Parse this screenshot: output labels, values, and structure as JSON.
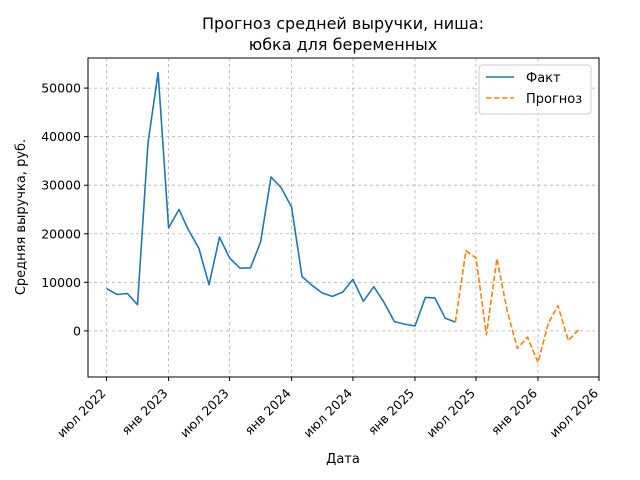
{
  "chart_data": {
    "type": "line",
    "title_line1": "Прогноз средней выручки, ниша:",
    "title_line2": "юбка для беременных",
    "xlabel": "Дата",
    "ylabel": "Средняя выручка, руб.",
    "grid": true,
    "legend_position": "top-right",
    "x_ticks": [
      {
        "label": "июл 2022",
        "date": "2022-07-01"
      },
      {
        "label": "янв 2023",
        "date": "2023-01-01"
      },
      {
        "label": "июл 2023",
        "date": "2023-07-01"
      },
      {
        "label": "янв 2024",
        "date": "2024-01-01"
      },
      {
        "label": "июл 2024",
        "date": "2024-07-01"
      },
      {
        "label": "янв 2025",
        "date": "2025-01-01"
      },
      {
        "label": "июл 2025",
        "date": "2025-07-01"
      },
      {
        "label": "янв 2026",
        "date": "2026-01-01"
      },
      {
        "label": "июл 2026",
        "date": "2026-07-01"
      }
    ],
    "y_ticks": [
      0,
      10000,
      20000,
      30000,
      40000,
      50000
    ],
    "xlim": [
      "2022-05-07",
      "2026-07-01"
    ],
    "ylim": [
      -9500,
      56200
    ],
    "series": [
      {
        "name": "Факт",
        "color": "#1f77b4",
        "dash": "solid",
        "x": [
          "2022-07-01",
          "2022-08-01",
          "2022-09-01",
          "2022-10-01",
          "2022-11-01",
          "2022-12-01",
          "2023-01-01",
          "2023-02-01",
          "2023-03-01",
          "2023-04-01",
          "2023-05-01",
          "2023-06-01",
          "2023-07-01",
          "2023-08-01",
          "2023-09-01",
          "2023-10-01",
          "2023-11-01",
          "2023-12-01",
          "2024-01-01",
          "2024-02-01",
          "2024-03-01",
          "2024-04-01",
          "2024-05-01",
          "2024-06-01",
          "2024-07-01",
          "2024-08-01",
          "2024-09-01",
          "2024-10-01",
          "2024-11-01",
          "2024-12-01",
          "2025-01-01",
          "2025-02-01",
          "2025-03-01",
          "2025-04-01",
          "2025-05-01"
        ],
        "y": [
          8700,
          7500,
          7700,
          5400,
          38700,
          53200,
          21200,
          25000,
          20800,
          17000,
          9500,
          19300,
          15000,
          12900,
          13000,
          18300,
          31700,
          29500,
          25500,
          11200,
          9400,
          7800,
          7100,
          8000,
          10600,
          6100,
          9100,
          5900,
          1900,
          1400,
          1000,
          6900,
          6800,
          2600,
          1800
        ]
      },
      {
        "name": "Прогноз",
        "color": "#ff7f0e",
        "dash": "dashed",
        "x": [
          "2025-05-01",
          "2025-06-01",
          "2025-07-01",
          "2025-08-01",
          "2025-09-01",
          "2025-10-01",
          "2025-11-01",
          "2025-12-01",
          "2026-01-01",
          "2026-02-01",
          "2026-03-01",
          "2026-04-01",
          "2026-05-01"
        ],
        "y": [
          1800,
          16500,
          15000,
          -800,
          14900,
          4300,
          -3600,
          -1300,
          -6500,
          1600,
          5200,
          -2000,
          200
        ]
      }
    ]
  }
}
